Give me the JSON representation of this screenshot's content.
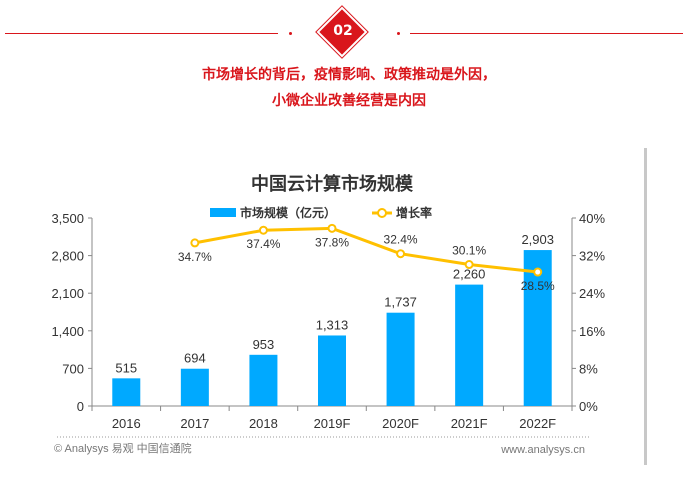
{
  "header": {
    "badge": "02",
    "line1": "市场增长的背后，疫情影响、政策推动是外因，",
    "line2": "小微企业改善经营是内因"
  },
  "footer": {
    "source": "© Analysys 易观 中国信通院",
    "url": "www.analysys.cn"
  },
  "colors": {
    "accent": "#d9161c",
    "bar": "#00a9ff",
    "line": "#ffc000"
  },
  "chart_data": {
    "type": "bar+line",
    "title": "中国云计算市场规模",
    "categories": [
      "2016",
      "2017",
      "2018",
      "2019F",
      "2020F",
      "2021F",
      "2022F"
    ],
    "series": [
      {
        "name": "市场规模（亿元）",
        "type": "bar",
        "axis": "left",
        "values": [
          515,
          694,
          953,
          1313,
          1737,
          2260,
          2903
        ],
        "labels": [
          "515",
          "694",
          "953",
          "1,313",
          "1,737",
          "2,260",
          "2,903"
        ]
      },
      {
        "name": "增长率",
        "type": "line",
        "axis": "right",
        "values": [
          null,
          34.7,
          37.4,
          37.8,
          32.4,
          30.1,
          28.5
        ],
        "labels": [
          "",
          "34.7%",
          "37.4%",
          "37.8%",
          "32.4%",
          "30.1%",
          "28.5%"
        ]
      }
    ],
    "yleft": {
      "ticks": [
        "0",
        "700",
        "1,400",
        "2,100",
        "2,800",
        "3,500"
      ],
      "ylim": [
        0,
        3500
      ]
    },
    "yright": {
      "ticks": [
        "0%",
        "8%",
        "16%",
        "24%",
        "32%",
        "40%"
      ],
      "ylim": [
        0,
        40
      ]
    },
    "legend": "top",
    "grid": false
  }
}
